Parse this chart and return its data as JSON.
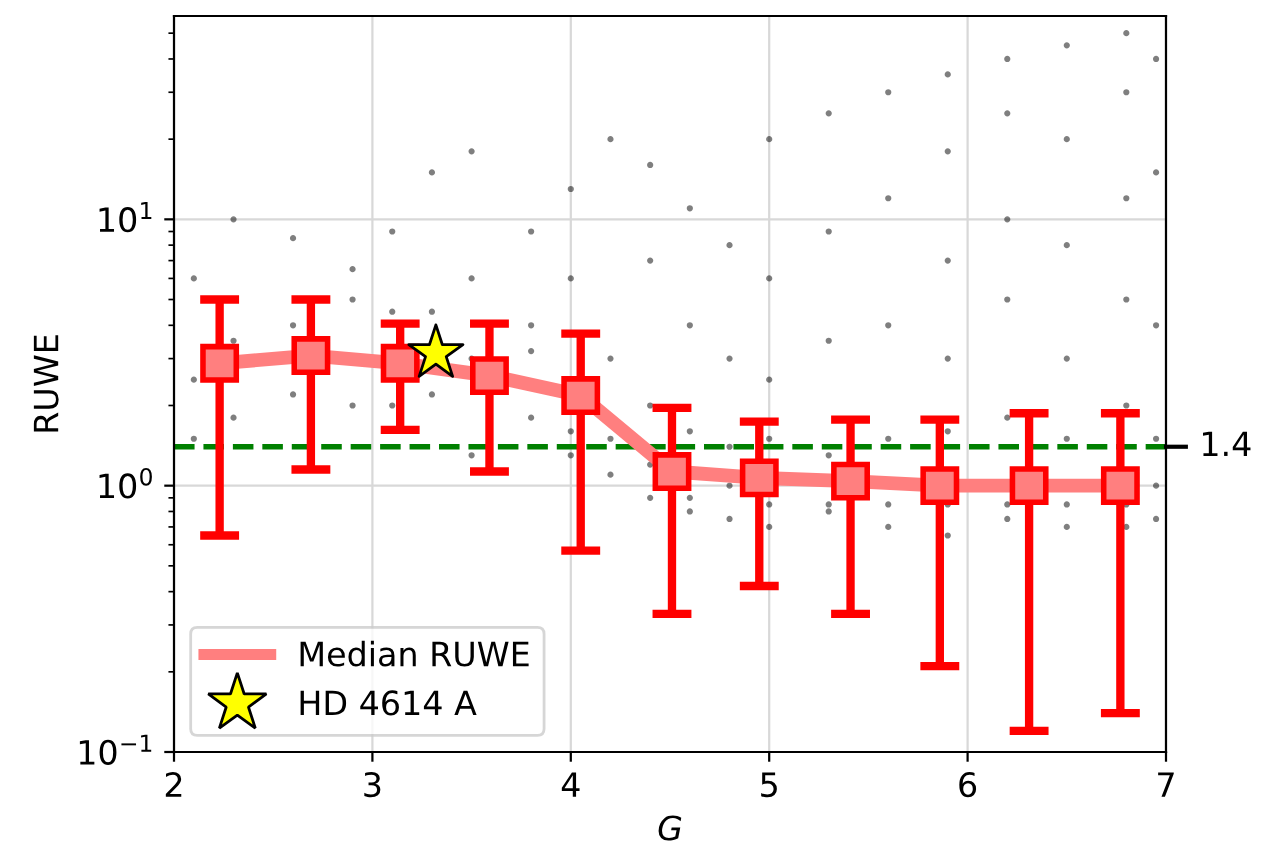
{
  "chart_data": {
    "type": "scatter",
    "xlabel": "G",
    "ylabel": "RUWE",
    "log": "y",
    "grid": true,
    "legend": "bottom left",
    "xlim": [
      2,
      7
    ],
    "xticks": [
      2,
      3,
      4,
      5,
      6,
      7
    ],
    "ylim": [
      0.1,
      58
    ],
    "yticks": [
      {
        "value": 0.1,
        "label": "10$^{−1}$"
      },
      {
        "value": 1,
        "label": "10$^{0}$"
      },
      {
        "value": 10,
        "label": "10$^{1}$"
      }
    ],
    "ref_lines": [
      {
        "axis": "y",
        "value": 1.4,
        "label": "1.4",
        "color": "#008000",
        "line_style": "dashed"
      }
    ],
    "series": [
      {
        "color": "#000000",
        "marker": "circle",
        "x": [
          2.1,
          2.1,
          2.1,
          2.3,
          2.3,
          2.3,
          2.6,
          2.6,
          2.6,
          2.9,
          2.9,
          2.9,
          3.1,
          3.1,
          3.1,
          3.3,
          3.3,
          3.3,
          3.5,
          3.5,
          3.5,
          3.5,
          3.8,
          3.8,
          3.8,
          3.8,
          4.0,
          4.0,
          4.0,
          4.0,
          4.2,
          4.2,
          4.2,
          4.2,
          4.4,
          4.4,
          4.4,
          4.4,
          4.4,
          4.6,
          4.6,
          4.6,
          4.6,
          4.6,
          4.8,
          4.8,
          4.8,
          4.8,
          4.8,
          5.0,
          5.0,
          5.0,
          5.0,
          5.0,
          5.0,
          5.3,
          5.3,
          5.3,
          5.3,
          5.3,
          5.3,
          5.6,
          5.6,
          5.6,
          5.6,
          5.6,
          5.6,
          5.9,
          5.9,
          5.9,
          5.9,
          5.9,
          5.9,
          5.9,
          6.2,
          6.2,
          6.2,
          6.2,
          6.2,
          6.2,
          6.2,
          6.5,
          6.5,
          6.5,
          6.5,
          6.5,
          6.5,
          6.5,
          6.8,
          6.8,
          6.8,
          6.8,
          6.8,
          6.8,
          6.8,
          6.95,
          6.95,
          6.95,
          6.95,
          6.95,
          6.95
        ],
        "values": [
          2.5,
          6,
          1.5,
          3.5,
          10,
          1.8,
          4,
          8.5,
          2.2,
          2,
          5,
          6.5,
          2,
          9,
          4.5,
          15,
          4.5,
          2.2,
          3,
          18,
          1.3,
          6,
          3.2,
          9,
          1.8,
          4,
          1.3,
          1.6,
          6,
          13,
          1.5,
          1.1,
          3,
          20,
          1.2,
          0.9,
          2,
          7,
          16,
          0.9,
          0.8,
          1.6,
          4,
          11,
          1.0,
          0.75,
          1.4,
          3,
          8,
          0.85,
          0.7,
          1.5,
          2.5,
          6,
          20,
          0.85,
          0.8,
          1.3,
          3.5,
          9,
          25,
          0.85,
          0.7,
          1.5,
          4,
          12,
          30,
          0.85,
          0.65,
          1.6,
          3,
          7,
          18,
          35,
          0.85,
          0.75,
          1.8,
          5,
          10,
          25,
          40,
          0.85,
          0.7,
          1.5,
          3,
          8,
          20,
          45,
          0.85,
          0.7,
          2,
          5,
          12,
          30,
          50,
          1.0,
          0.75,
          1.5,
          4,
          15,
          40
        ]
      },
      {
        "type": "line",
        "name": "Median RUWE",
        "color": "#ff7f7f",
        "marker": "square",
        "x": [
          2.23,
          2.69,
          3.14,
          3.59,
          4.05,
          4.51,
          4.95,
          5.41,
          5.86,
          6.31,
          6.77
        ],
        "values": [
          2.88,
          3.08,
          2.88,
          2.59,
          2.18,
          1.13,
          1.07,
          1.04,
          1.0,
          1.0,
          1.0
        ],
        "errors": [
          [
            0.65,
            5.0
          ],
          [
            1.15,
            5.0
          ],
          [
            1.62,
            4.06
          ],
          [
            1.13,
            4.06
          ],
          [
            0.57,
            3.72
          ],
          [
            0.33,
            1.96
          ],
          [
            0.42,
            1.74
          ],
          [
            0.33,
            1.77
          ],
          [
            0.21,
            1.77
          ],
          [
            0.12,
            1.87
          ],
          [
            0.14,
            1.87
          ]
        ]
      },
      {
        "type": "scatter",
        "name": "HD 4614 A",
        "color": "#ffff00",
        "marker": "star",
        "x": [
          3.32
        ],
        "values": [
          3.14
        ]
      }
    ]
  }
}
